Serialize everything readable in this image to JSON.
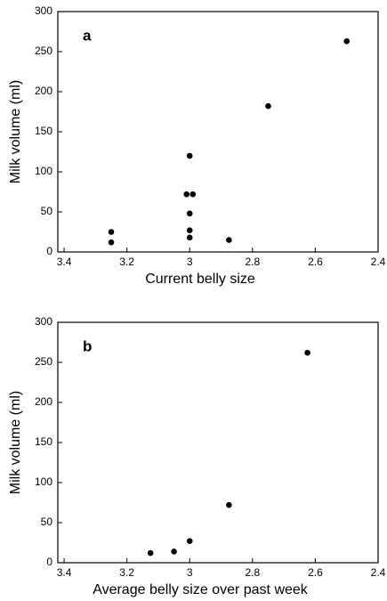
{
  "chart_data": [
    {
      "type": "scatter",
      "annotation": "a",
      "x_label": "Current belly size",
      "y_label": "Milk volume (ml)",
      "color": "#000000",
      "x": [
        3.25,
        3.25,
        3,
        3.01,
        2.99,
        3,
        3,
        3,
        2.875,
        2.75,
        2.5
      ],
      "values": [
        25,
        12,
        120,
        72,
        72,
        48,
        27,
        18,
        15,
        182,
        263
      ],
      "xlim": [
        3.42,
        2.4
      ],
      "xticks": [
        3.4,
        3.2,
        3,
        2.8,
        2.6,
        2.4
      ],
      "ylim": [
        0,
        300
      ],
      "yticks": [
        0,
        50,
        100,
        150,
        200,
        250,
        300
      ]
    },
    {
      "type": "scatter",
      "annotation": "b",
      "x_label": "Average belly size over past week",
      "y_label": "Milk volume (ml)",
      "color": "#000000",
      "x": [
        3.125,
        3.05,
        3,
        2.875,
        2.625
      ],
      "values": [
        12,
        14,
        27,
        72,
        262
      ],
      "xlim": [
        3.42,
        2.4
      ],
      "xticks": [
        3.4,
        3.2,
        3,
        2.8,
        2.6,
        2.4
      ],
      "ylim": [
        0,
        300
      ],
      "yticks": [
        0,
        50,
        100,
        150,
        200,
        250,
        300
      ]
    }
  ]
}
